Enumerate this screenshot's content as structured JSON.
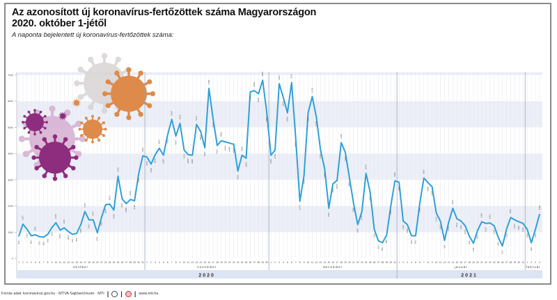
{
  "title_line1": "Az azonosított új koronavírus-fertőzöttek száma Magyarországon",
  "title_line2": "2020. október 1-jétől",
  "subtitle": "A naponta bejelentett új koronavírus-fertőzöttek száma:",
  "footer": {
    "source": "Forrás adat: koronavirus.gov.hu · MTVA Sajtóarchívum · MTI",
    "web": "www.mti.hu"
  },
  "colors": {
    "line": "#2f9fd6",
    "band": "#eceff7",
    "year_band": "#dde4f3",
    "virus_purple": "#8e2c7e",
    "virus_orange": "#de8a4a"
  },
  "chart_data": {
    "type": "line",
    "title": "Az azonosított új koronavírus-fertőzöttek száma Magyarországon 2020. október 1-jétől",
    "ylabel": "A naponta bejelentett új koronavírus-fertőzöttek száma",
    "ylim": [
      0,
      7000
    ],
    "yticks": [
      "0",
      "1000",
      "2000",
      "3000",
      "4000",
      "5000",
      "6000",
      "7000"
    ],
    "grid": true,
    "months": [
      {
        "name": "október",
        "days": 31,
        "year": "2020"
      },
      {
        "name": "november",
        "days": 30,
        "year": "2020"
      },
      {
        "name": "december",
        "days": 31,
        "year": "2020"
      },
      {
        "name": "január",
        "days": 31,
        "year": "2021"
      },
      {
        "name": "február",
        "days": 4,
        "year": "2021"
      }
    ],
    "years": [
      {
        "name": "2020",
        "months": 3
      },
      {
        "name": "2021",
        "months": 2
      }
    ],
    "values": [
      844,
      1307,
      1111,
      862,
      898,
      827,
      809,
      916,
      1173,
      1360,
      1076,
      1164,
      1022,
      916,
      951,
      1289,
      1787,
      1467,
      1467,
      978,
      1556,
      2044,
      2071,
      1840,
      3138,
      2267,
      2089,
      2249,
      2196,
      3227,
      3911,
      3867,
      3600,
      3956,
      4204,
      3938,
      4711,
      5307,
      4667,
      5156,
      4133,
      3956,
      3938,
      5111,
      4844,
      4222,
      6489,
      5333,
      4311,
      4489,
      4444,
      4400,
      4356,
      3333,
      3938,
      3822,
      6356,
      6400,
      6284,
      6800,
      5556,
      3938,
      4133,
      6667,
      6133,
      5556,
      6711,
      4578,
      2178,
      3156,
      5556,
      6178,
      5378,
      4133,
      3422,
      1911,
      2844,
      2978,
      4418,
      4044,
      3067,
      2089,
      1289,
      1778,
      3244,
      2533,
      1111,
      667,
      596,
      889,
      2000,
      2960,
      2907,
      1422,
      1289,
      862,
      862,
      2089,
      3067,
      2889,
      2729,
      1733,
      1422,
      684,
      1378,
      1911,
      1511,
      1422,
      1244,
      844,
      578,
      1067,
      1396,
      1333,
      1351,
      1244,
      800,
      471,
      1111,
      1556,
      1467,
      1396,
      1333,
      1111,
      596,
      1111,
      1689
    ]
  }
}
